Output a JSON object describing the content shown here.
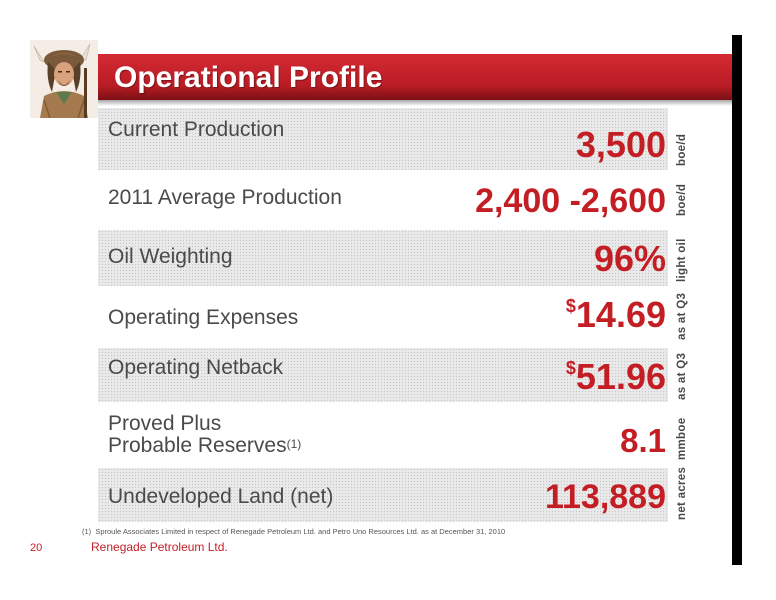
{
  "title": "Operational Profile",
  "rows": [
    {
      "label": "Current Production",
      "value": "3,500",
      "unit": "boe/d",
      "shaded": true
    },
    {
      "label": "2011 Average Production",
      "value": "2,400 -2,600",
      "unit": "boe/d",
      "shaded": false
    },
    {
      "label": "Oil Weighting",
      "value": "96%",
      "unit": "light oil",
      "shaded": true
    },
    {
      "label": "Operating Expenses",
      "currency": "$",
      "value": "14.69",
      "unit": "as at Q3",
      "shaded": false
    },
    {
      "label": "Operating Netback",
      "currency": "$",
      "value": "51.96",
      "unit": "as at Q3",
      "shaded": true
    },
    {
      "label_line1": "Proved Plus",
      "label_line2": "Probable Reserves",
      "label_sup": "(1)",
      "value": "8.1",
      "unit": "mmboe",
      "shaded": false
    },
    {
      "label": "Undeveloped Land (net)",
      "value": "113,889",
      "unit": "net acres",
      "shaded": true
    }
  ],
  "footnote": {
    "marker": "(1)",
    "text": "Sproule Associates Limited in respect of Renegade Petroleum Ltd. and Petro Uno Resources Ltd. as at December 31, 2010"
  },
  "page_number": "20",
  "company_name": "Renegade Petroleum Ltd.",
  "colors": {
    "accent": "#c41e25",
    "banner": "#c1222a",
    "text": "#4a4a4a"
  }
}
